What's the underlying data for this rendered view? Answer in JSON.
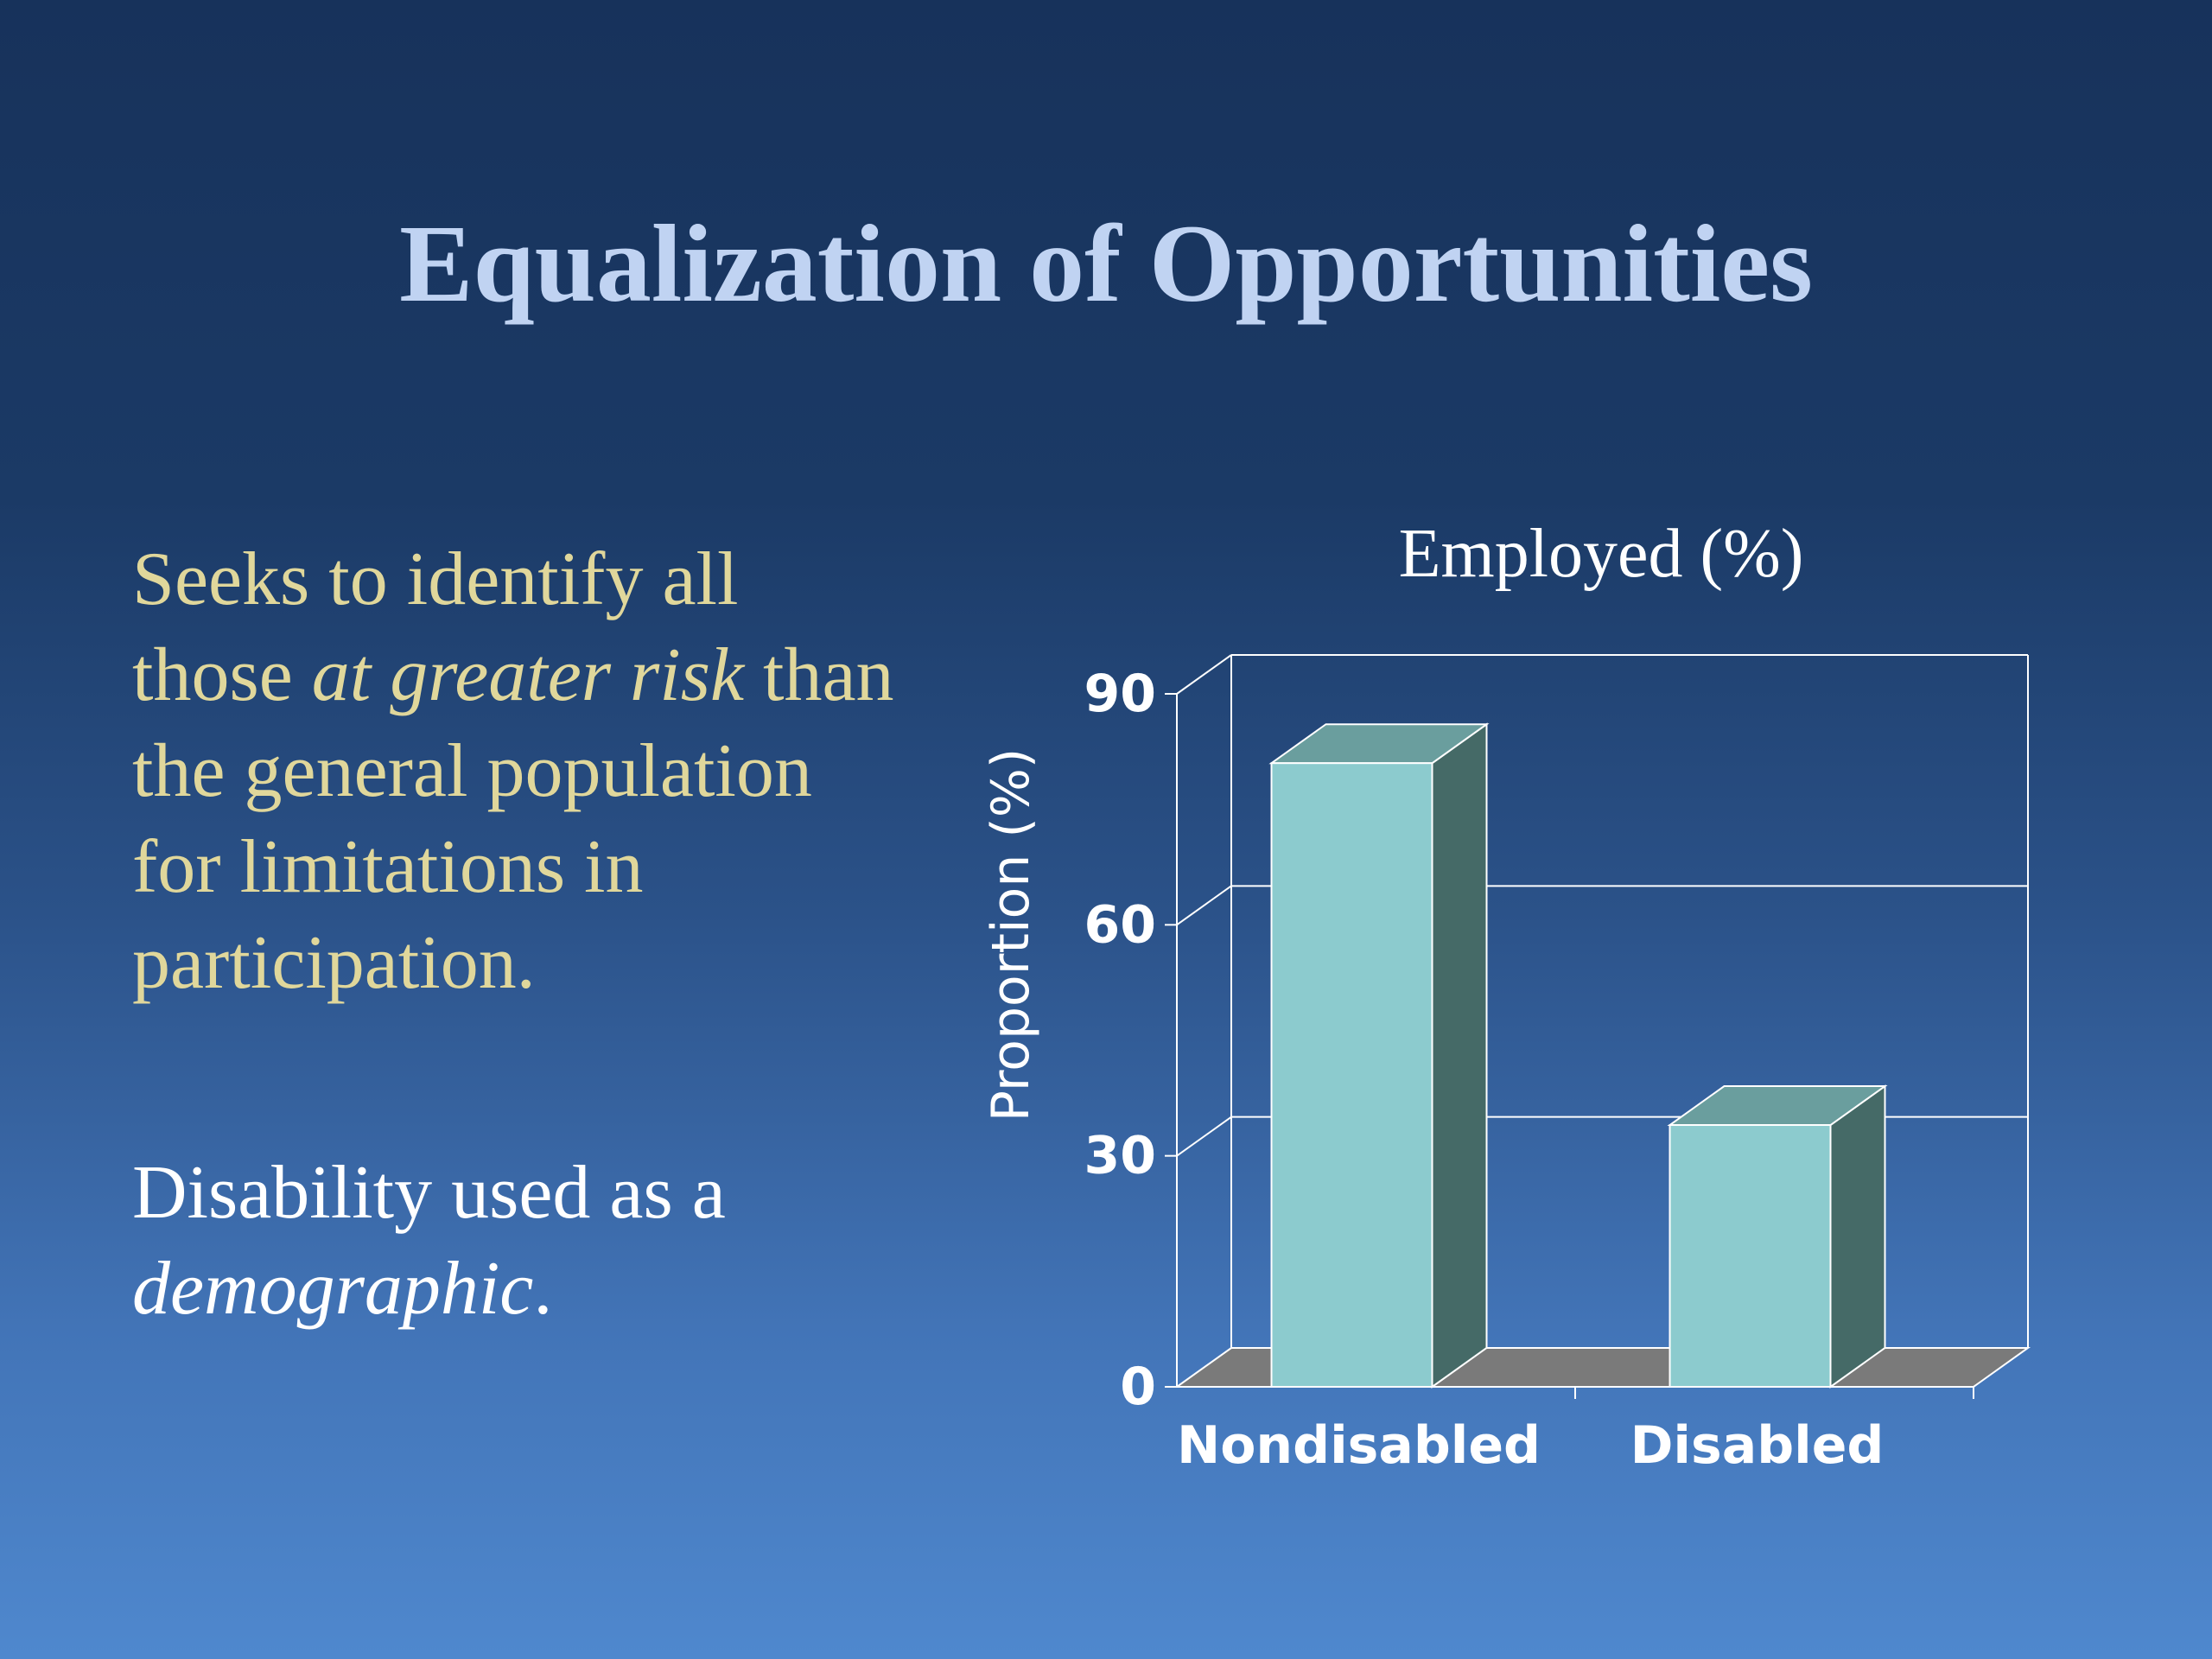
{
  "slide": {
    "title": "Equalization of Opportunities",
    "bullet1": {
      "line1": "Seeks to identify all",
      "line2_pre": "those ",
      "line2_em": "at greater risk",
      "line2_post": " than",
      "line3": "the general population",
      "line4": "for limitations in",
      "line5": "participation."
    },
    "bullet2": {
      "line1": "Disability used as a",
      "line2_em": "demographic",
      "line2_post": "."
    }
  },
  "colors": {
    "title": "#c0d3f2",
    "bullet1": "#e0d79b",
    "bullet2": "#ffffff",
    "bar_front": "#8ccbce",
    "bar_top": "#6a9e9e",
    "bar_side": "#456a67",
    "floor": "#7a7a7a",
    "grid": "#ffffff"
  },
  "chart_data": {
    "type": "bar",
    "title": "Employed (%)",
    "ylabel": "Proportion (%)",
    "xlabel": "",
    "categories": [
      "Nondisabled",
      "Disabled"
    ],
    "values": [
      81,
      34
    ],
    "ylim": [
      0,
      90
    ],
    "yticks": [
      0,
      30,
      60,
      90
    ],
    "grid": true,
    "style": "3d"
  }
}
